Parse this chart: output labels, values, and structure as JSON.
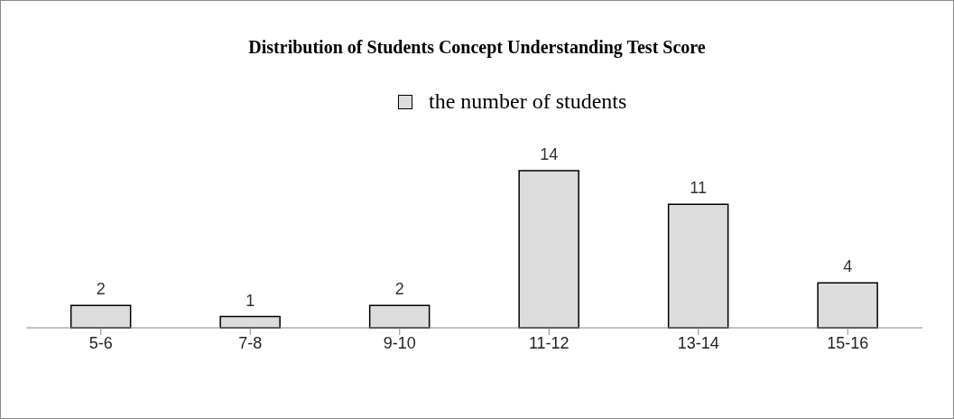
{
  "chart_data": {
    "type": "bar",
    "title": "Distribution of Students Concept Understanding Test Score",
    "categories": [
      "5-6",
      "7-8",
      "9-10",
      "11-12",
      "13-14",
      "15-16"
    ],
    "series": [
      {
        "name": "the number of students",
        "color": "#dcdcdc",
        "values": [
          2,
          1,
          2,
          14,
          11,
          4
        ]
      }
    ],
    "data_labels": true,
    "legend": "top",
    "grid": false
  }
}
